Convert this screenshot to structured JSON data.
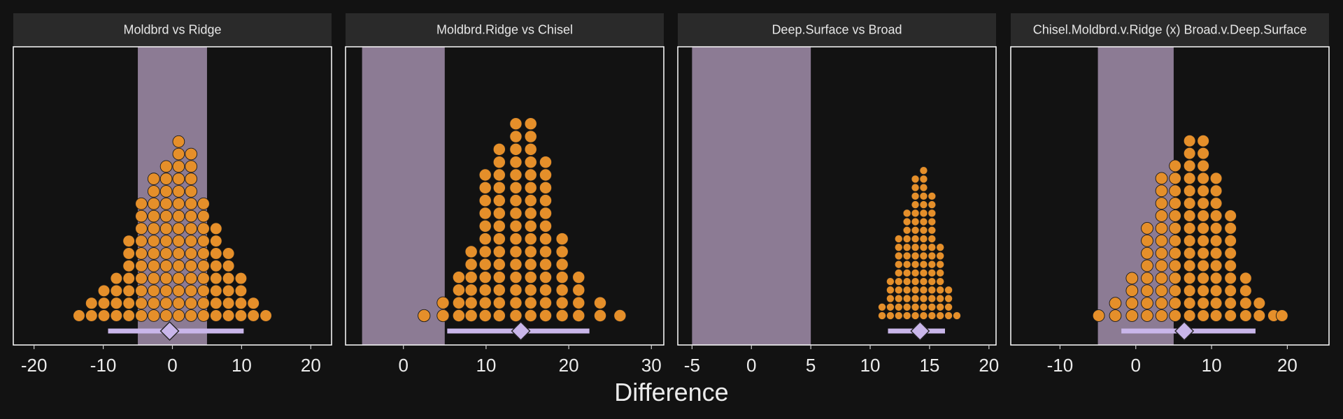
{
  "chart_data": {
    "type": "dotplot",
    "xlabel": "Difference",
    "colors": {
      "background": "#121212",
      "strip": "#2a2a2a",
      "rope_band": "#8c7b94",
      "dot_fill": "#e58f2a",
      "dot_stroke": "#1a1a1a",
      "interval": "#c9b6ea",
      "panel_border": "#ffffff"
    },
    "panels": [
      {
        "title": "Moldbrd vs Ridge",
        "xlim": [
          -23,
          23
        ],
        "ticks": [
          -20,
          -10,
          0,
          10,
          20
        ],
        "tick_labels": [
          "-20",
          "-10",
          "0",
          "10",
          "20"
        ],
        "rope": [
          -5,
          5
        ],
        "dot_size": 1.8,
        "bins": [
          [
            -13.5,
            1
          ],
          [
            -11.7,
            2
          ],
          [
            -9.9,
            3
          ],
          [
            -8.1,
            4
          ],
          [
            -6.3,
            7
          ],
          [
            -4.5,
            10
          ],
          [
            -2.7,
            12
          ],
          [
            -0.9,
            13
          ],
          [
            0.9,
            15
          ],
          [
            2.7,
            14
          ],
          [
            4.5,
            10
          ],
          [
            6.3,
            8
          ],
          [
            8.1,
            6
          ],
          [
            9.9,
            4
          ],
          [
            11.7,
            2
          ],
          [
            13.5,
            1
          ]
        ],
        "point": -0.4,
        "interval": [
          -9.3,
          10.3
        ]
      },
      {
        "title": "Moldbrd.Ridge vs Chisel",
        "xlim": [
          -7,
          31.5
        ],
        "ticks": [
          0,
          10,
          20,
          30
        ],
        "tick_labels": [
          "0",
          "10",
          "20",
          "30"
        ],
        "rope": [
          -5,
          5
        ],
        "dot_size": 1.55,
        "bins": [
          [
            2.5,
            1
          ],
          [
            4.8,
            2
          ],
          [
            6.7,
            4
          ],
          [
            8.2,
            6
          ],
          [
            9.9,
            12
          ],
          [
            11.6,
            14
          ],
          [
            13.6,
            16
          ],
          [
            15.4,
            16
          ],
          [
            17.2,
            13
          ],
          [
            19.2,
            7
          ],
          [
            21.2,
            4
          ],
          [
            23.8,
            2
          ],
          [
            26.2,
            1
          ]
        ],
        "point": 14.2,
        "interval": [
          5.3,
          22.5
        ]
      },
      {
        "title": "Deep.Surface vs Broad",
        "xlim": [
          -6.2,
          20.6
        ],
        "ticks": [
          -5,
          0,
          5,
          10,
          15,
          20
        ],
        "tick_labels": [
          "-5",
          "0",
          "5",
          "10",
          "15",
          "20"
        ],
        "rope": [
          -5,
          5
        ],
        "dot_size": 0.72,
        "bins": [
          [
            11,
            2
          ],
          [
            11.7,
            5
          ],
          [
            12.4,
            10
          ],
          [
            13.1,
            13
          ],
          [
            13.8,
            17
          ],
          [
            14.5,
            18
          ],
          [
            15.2,
            15
          ],
          [
            15.9,
            9
          ],
          [
            16.6,
            4
          ],
          [
            17.3,
            1
          ]
        ],
        "point": 14.2,
        "interval": [
          11.5,
          16.3
        ]
      },
      {
        "title": "Chisel.Moldbrd.v.Ridge (x) Broad.v.Deep.Surface",
        "xlim": [
          -16.5,
          25.5
        ],
        "ticks": [
          -10,
          0,
          10,
          20
        ],
        "tick_labels": [
          "-10",
          "0",
          "10",
          "20"
        ],
        "rope": [
          -5,
          5
        ],
        "dot_size": 1.65,
        "bins": [
          [
            -4.9,
            1
          ],
          [
            -2.7,
            2
          ],
          [
            -0.5,
            4
          ],
          [
            1.5,
            8
          ],
          [
            3.4,
            12
          ],
          [
            5.2,
            13
          ],
          [
            7.1,
            15
          ],
          [
            8.9,
            15
          ],
          [
            10.6,
            12
          ],
          [
            12.5,
            9
          ],
          [
            14.5,
            4
          ],
          [
            16.3,
            2
          ],
          [
            18.2,
            1
          ],
          [
            19.3,
            1
          ]
        ],
        "point": 6.4,
        "interval": [
          -1.9,
          15.8
        ]
      }
    ]
  }
}
